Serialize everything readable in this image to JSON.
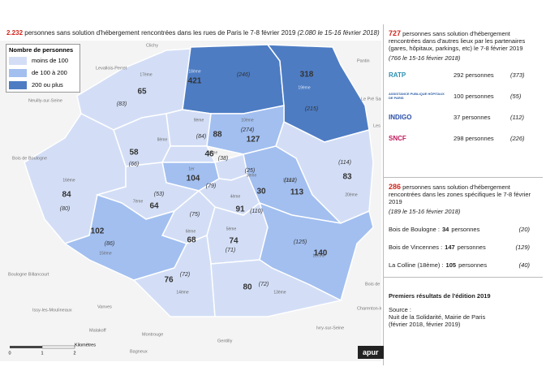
{
  "header": {
    "count": "2.232",
    "text": "personnes sans solution d'hébergement rencontrées dans les rues de Paris le 7-8 février 2019",
    "previous": "(2.080 le 15-16 février 2018)"
  },
  "legend": {
    "title": "Nombre de personnes",
    "classes": [
      {
        "label": "moins de 100",
        "color": "#d3def6"
      },
      {
        "label": "de 100 à 200",
        "color": "#a2bff0"
      },
      {
        "label": "200 ou plus",
        "color": "#4d7cc3"
      }
    ]
  },
  "arrondissements": [
    {
      "name": "17ème",
      "count": "65",
      "previous": "(83)",
      "color": "#d3def6"
    },
    {
      "name": "18ème",
      "count": "421",
      "previous": "(246)",
      "color": "#4d7cc3"
    },
    {
      "name": "19ème",
      "count": "318",
      "previous": "(215)",
      "color": "#4d7cc3"
    },
    {
      "name": "16ème",
      "count": "84",
      "previous": "(80)",
      "color": "#d3def6"
    },
    {
      "name": "8ème",
      "count": "58",
      "previous": "(66)",
      "color": "#d3def6"
    },
    {
      "name": "9ème",
      "count": "88",
      "previous": "(84)",
      "color": "#d3def6"
    },
    {
      "name": "10ème",
      "count": "127",
      "previous": "(274)",
      "color": "#a2bff0"
    },
    {
      "name": "20ème",
      "count": "83",
      "previous": "(114)",
      "color": "#d3def6"
    },
    {
      "name": "2ème",
      "count": "46",
      "previous": "(38)",
      "color": "#d3def6"
    },
    {
      "name": "1er",
      "count": "104",
      "previous": "(79)",
      "color": "#a2bff0"
    },
    {
      "name": "3ème",
      "count": "30",
      "previous": "(25)",
      "color": "#d3def6"
    },
    {
      "name": "4ème",
      "count": "91",
      "previous": "(110)",
      "color": "#d3def6"
    },
    {
      "name": "11ème",
      "count": "113",
      "previous": "(112)",
      "color": "#a2bff0"
    },
    {
      "name": "7ème",
      "count": "64",
      "previous": "(53)",
      "color": "#d3def6"
    },
    {
      "name": "6ème",
      "count": "68",
      "previous": "(75)",
      "color": "#d3def6"
    },
    {
      "name": "5ème",
      "count": "74",
      "previous": "(71)",
      "color": "#d3def6"
    },
    {
      "name": "15ème",
      "count": "102",
      "previous": "(86)",
      "color": "#a2bff0"
    },
    {
      "name": "12ème",
      "count": "140",
      "previous": "(125)",
      "color": "#a2bff0"
    },
    {
      "name": "14ème",
      "count": "76",
      "previous": "(72)",
      "color": "#d3def6"
    },
    {
      "name": "13ème",
      "count": "80",
      "previous": "(72)",
      "color": "#d3def6"
    }
  ],
  "places": [
    "Clichy",
    "Levallois-Perret",
    "Neuilly-sur-Seine",
    "Bois de Boulogne",
    "Boulogne Billancourt",
    "Issy-les-Moulineaux",
    "Vanves",
    "Malakoff",
    "Montrouge",
    "Gentilly",
    "Ivry-sur-Seine",
    "Charenton-le-Pont",
    "Bois de Vincennes",
    "Les Lilas",
    "Le Pré Saint Gervais",
    "Pantin",
    "Bagneux"
  ],
  "scale": {
    "ticks": [
      "0",
      "1",
      "2"
    ],
    "unit": "Kilomètres"
  },
  "partners": {
    "count": "727",
    "text": "personnes sans solution d'hébergement rencontrées dans d'autres lieux par les partenaires (gares, hôpitaux, parkings, etc) le 7-8 février 2019",
    "previous": "(766 le 15-16 février 2018)",
    "rows": [
      {
        "logo": "RATP",
        "count": "292 personnes",
        "previous": "(373)"
      },
      {
        "logo": "ASSISTANCE PUBLIQUE HÔPITAUX DE PARIS",
        "count": "100 personnes",
        "previous": "(55)"
      },
      {
        "logo": "INDIGO",
        "count": "37 personnes",
        "previous": "(112)"
      },
      {
        "logo": "SNCF",
        "count": "298 personnes",
        "previous": "(226)"
      }
    ]
  },
  "zones": {
    "count": "286",
    "text": "personnes sans solution d'hébergement rencontrées dans les zones spécifiques le 7-8 février 2019",
    "previous": "(189 le 15-16 février 2018)",
    "rows": [
      {
        "name": "Bois de Boulogne :",
        "count": "34",
        "unit": "personnes",
        "previous": "(20)"
      },
      {
        "name": "Bois de Vincennes :",
        "count": "147",
        "unit": "personnes",
        "previous": "(129)"
      },
      {
        "name": "La Colline (18ème) :",
        "count": "105",
        "unit": "personnes",
        "previous": "(40)"
      }
    ]
  },
  "footer": {
    "edition": "Premiers résultats de l'édition 2019",
    "source": "Source :",
    "source_text": "Nuit de la Solidarité, Mairie de Paris (février 2018, février 2019)",
    "brand": "apur"
  }
}
